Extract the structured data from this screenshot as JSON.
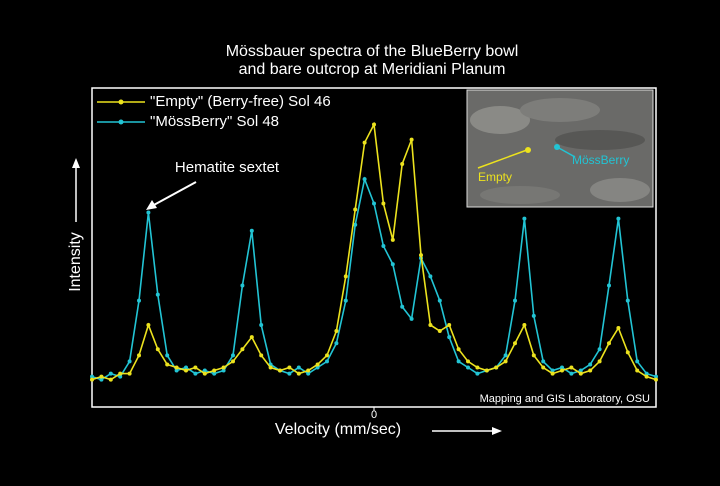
{
  "chart_data": {
    "type": "line",
    "title_lines": [
      "Mössbauer spectra of the BlueBerry bowl",
      "and bare outcrop at Meridiani Planum"
    ],
    "x_label": "Velocity (mm/sec)",
    "y_label": "Intensity",
    "x": [
      -12,
      -11.6,
      -11.2,
      -10.8,
      -10.4,
      -10,
      -9.6,
      -9.2,
      -8.8,
      -8.4,
      -8,
      -7.6,
      -7.2,
      -6.8,
      -6.4,
      -6,
      -5.6,
      -5.2,
      -4.8,
      -4.4,
      -4,
      -3.6,
      -3.2,
      -2.8,
      -2.4,
      -2,
      -1.6,
      -1.2,
      -0.8,
      -0.4,
      0,
      0.4,
      0.8,
      1.2,
      1.6,
      2,
      2.4,
      2.8,
      3.2,
      3.6,
      4,
      4.4,
      4.8,
      5.2,
      5.6,
      6,
      6.4,
      6.8,
      7.2,
      7.6,
      8,
      8.4,
      8.8,
      9.2,
      9.6,
      10,
      10.4,
      10.8,
      11.2,
      11.6,
      12
    ],
    "series": [
      {
        "name": "\"MössBerry\"  Sol 48",
        "color": "#22c4d4",
        "values": [
          5,
          4,
          6,
          5,
          10,
          30,
          59,
          32,
          12,
          7,
          8,
          6,
          7,
          6,
          7,
          12,
          35,
          53,
          22,
          9,
          7,
          6,
          8,
          6,
          8,
          10,
          16,
          30,
          55,
          70,
          62,
          48,
          42,
          28,
          24,
          44,
          38,
          30,
          18,
          10,
          8,
          6,
          7,
          8,
          12,
          30,
          57,
          25,
          10,
          7,
          8,
          6,
          7,
          9,
          14,
          35,
          57,
          30,
          10,
          6,
          5
        ]
      },
      {
        "name": "\"Empty\" (Berry-free)  Sol 46",
        "color": "#ece21e",
        "values": [
          4,
          5,
          4,
          6,
          6,
          12,
          22,
          14,
          9,
          8,
          7,
          8,
          6,
          7,
          8,
          10,
          14,
          18,
          12,
          8,
          7,
          8,
          6,
          7,
          9,
          12,
          20,
          38,
          60,
          82,
          88,
          62,
          50,
          75,
          83,
          45,
          22,
          20,
          22,
          14,
          10,
          8,
          7,
          8,
          10,
          16,
          22,
          12,
          8,
          6,
          7,
          8,
          6,
          7,
          10,
          16,
          21,
          13,
          7,
          5,
          4
        ]
      }
    ],
    "legend_order": [
      1,
      0
    ],
    "xlim": [
      -12,
      12
    ],
    "xticks": [
      0
    ],
    "ylim": [
      -5,
      100
    ],
    "annotations": [
      "Hematite sextet",
      "Empty",
      "MössBerry",
      "Mapping and GIS Laboratory, OSU"
    ]
  }
}
